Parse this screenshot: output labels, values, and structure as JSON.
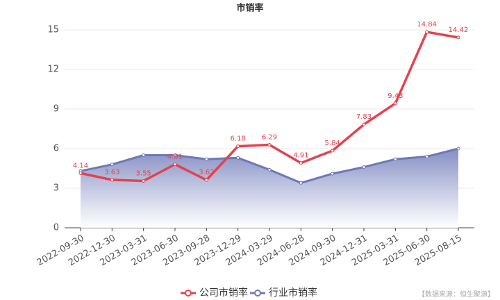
{
  "chart_data": {
    "type": "line",
    "title": "市销率",
    "categories": [
      "2022-09-30",
      "2022-12-30",
      "2023-03-31",
      "2023-06-30",
      "2023-09-28",
      "2023-12-29",
      "2024-03-29",
      "2024-06-28",
      "2024-09-30",
      "2024-12-31",
      "2025-03-31",
      "2025-06-30",
      "2025-08-15"
    ],
    "series": [
      {
        "name": "公司市销率",
        "color": "#e5414e",
        "values": [
          4.14,
          3.63,
          3.55,
          4.81,
          3.62,
          6.18,
          6.29,
          4.91,
          5.84,
          7.83,
          9.43,
          14.84,
          14.42
        ],
        "labels": true
      },
      {
        "name": "行业市销率",
        "color": "#6e78b6",
        "values": [
          4.3,
          4.8,
          5.5,
          5.5,
          5.2,
          5.3,
          4.4,
          3.4,
          4.1,
          4.6,
          5.2,
          5.4,
          6.0
        ],
        "area": true
      }
    ],
    "ylim": [
      0,
      15
    ],
    "yticks": [
      0,
      3,
      6,
      9,
      12,
      15
    ],
    "grid": true,
    "source": "【数据来源：恒生聚源】"
  }
}
